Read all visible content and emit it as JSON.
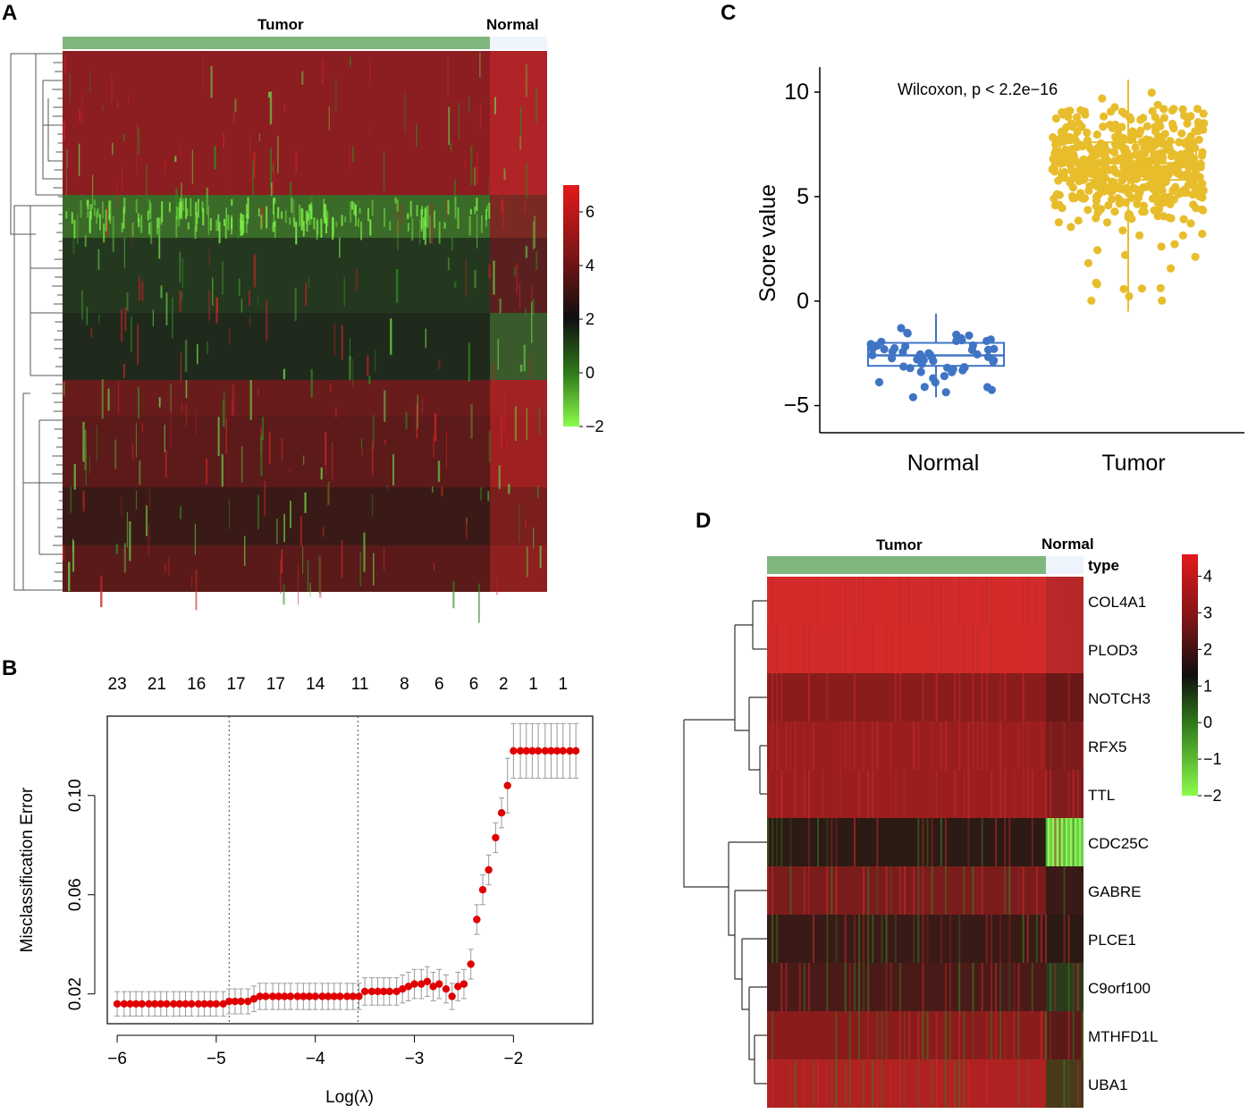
{
  "panels": {
    "a": "A",
    "b": "B",
    "c": "C",
    "d": "D"
  },
  "colors": {
    "green_anno": "#7fb77e",
    "normal_anno": "#eef4fb",
    "red": "#e31a1c",
    "black": "#111111",
    "green": "#7cfc3c",
    "point_red": "#e00000",
    "blue": "#3f74c4",
    "gold": "#e8bd2c"
  },
  "chart_data": [
    {
      "id": "A",
      "type": "heatmap",
      "column_groups": [
        "Tumor",
        "Normal"
      ],
      "colorbar_ticks": [
        "6",
        "4",
        "2",
        "0",
        "−2"
      ],
      "colorbar_range": [
        -2,
        7
      ]
    },
    {
      "id": "B",
      "type": "scatter",
      "xlabel": "Log(λ)",
      "ylabel": "Misclassification Error",
      "xlim": [
        -6.1,
        -1.2
      ],
      "ylim": [
        0.008,
        0.132
      ],
      "x_ticks": [
        -6,
        -5,
        -4,
        -3,
        -2
      ],
      "x_tick_labels": [
        "−6",
        "−5",
        "−4",
        "−3",
        "−2"
      ],
      "y_ticks": [
        0.02,
        0.06,
        0.1
      ],
      "y_tick_labels": [
        "0.02",
        "0.06",
        "0.10"
      ],
      "top_labels": [
        "23",
        "21",
        "16",
        "17",
        "17",
        "14",
        "11",
        "8",
        "6",
        "6",
        "2",
        "1",
        "1"
      ],
      "top_label_x": [
        -6,
        -5.6,
        -5.2,
        -4.8,
        -4.4,
        -4.0,
        -3.55,
        -3.1,
        -2.75,
        -2.4,
        -2.1,
        -1.8,
        -1.5
      ],
      "vlines": [
        -4.87,
        -3.57
      ],
      "points_x": [
        -6.0,
        -5.93,
        -5.87,
        -5.81,
        -5.75,
        -5.68,
        -5.62,
        -5.56,
        -5.5,
        -5.43,
        -5.37,
        -5.31,
        -5.25,
        -5.18,
        -5.12,
        -5.06,
        -5.0,
        -4.93,
        -4.87,
        -4.81,
        -4.75,
        -4.68,
        -4.62,
        -4.56,
        -4.5,
        -4.43,
        -4.37,
        -4.31,
        -4.25,
        -4.18,
        -4.12,
        -4.06,
        -4.0,
        -3.93,
        -3.87,
        -3.81,
        -3.75,
        -3.68,
        -3.62,
        -3.56,
        -3.5,
        -3.43,
        -3.37,
        -3.31,
        -3.25,
        -3.18,
        -3.12,
        -3.06,
        -3.0,
        -2.93,
        -2.87,
        -2.81,
        -2.75,
        -2.68,
        -2.62,
        -2.56,
        -2.5,
        -2.43,
        -2.37,
        -2.31,
        -2.25,
        -2.18,
        -2.12,
        -2.06,
        -2.0,
        -1.93,
        -1.87,
        -1.81,
        -1.75,
        -1.68,
        -1.62,
        -1.56,
        -1.5,
        -1.43,
        -1.37
      ],
      "points_y": [
        0.016,
        0.016,
        0.016,
        0.016,
        0.016,
        0.016,
        0.016,
        0.016,
        0.016,
        0.016,
        0.016,
        0.016,
        0.016,
        0.016,
        0.016,
        0.016,
        0.016,
        0.016,
        0.017,
        0.017,
        0.017,
        0.017,
        0.018,
        0.019,
        0.019,
        0.019,
        0.019,
        0.019,
        0.019,
        0.019,
        0.019,
        0.019,
        0.019,
        0.019,
        0.019,
        0.019,
        0.019,
        0.019,
        0.019,
        0.019,
        0.021,
        0.021,
        0.021,
        0.021,
        0.021,
        0.021,
        0.022,
        0.023,
        0.024,
        0.024,
        0.025,
        0.023,
        0.024,
        0.022,
        0.019,
        0.023,
        0.024,
        0.032,
        0.05,
        0.062,
        0.07,
        0.083,
        0.093,
        0.104,
        0.118,
        0.118,
        0.118,
        0.118,
        0.118,
        0.118,
        0.118,
        0.118,
        0.118,
        0.118,
        0.118
      ]
    },
    {
      "id": "C",
      "type": "box+scatter",
      "annotation": "Wilcoxon, p < 2.2e−16",
      "ylabel": "Score value",
      "categories": [
        "Normal",
        "Tumor"
      ],
      "ylim": [
        -6.3,
        11.2
      ],
      "y_ticks": [
        10,
        5,
        0,
        -5
      ],
      "y_tick_labels": [
        "10",
        "5",
        "0",
        "−5"
      ],
      "boxes": [
        {
          "name": "Normal",
          "q1": -3.1,
          "median": -2.6,
          "q3": -2.0,
          "whisker_low": -4.6,
          "whisker_high": -0.6
        },
        {
          "name": "Tumor",
          "q1": 5.8,
          "median": 6.6,
          "q3": 7.6,
          "whisker_low": -0.5,
          "whisker_high": 10.6
        }
      ]
    },
    {
      "id": "D",
      "type": "heatmap",
      "column_groups": [
        "Tumor",
        "Normal"
      ],
      "annotation_label": "type",
      "genes": [
        "COL4A1",
        "PLOD3",
        "NOTCH3",
        "RFX5",
        "TTL",
        "CDC25C",
        "GABRE",
        "PLCE1",
        "C9orf100",
        "MTHFD1L",
        "UBA1"
      ],
      "colorbar_ticks": [
        "4",
        "3",
        "2",
        "1",
        "0",
        "−1",
        "−2"
      ],
      "colorbar_range": [
        -2,
        4.6
      ]
    }
  ]
}
